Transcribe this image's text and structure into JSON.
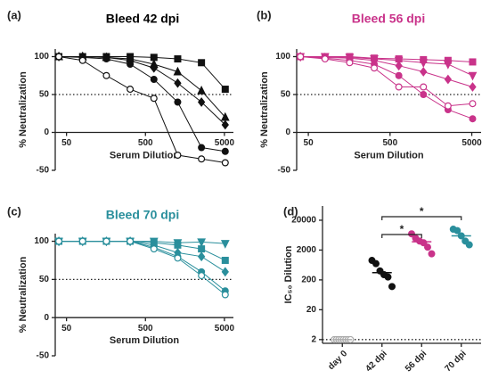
{
  "chart_data": [
    {
      "type": "line",
      "panel": "(a)",
      "title": "Bleed 42 dpi",
      "title_color": "#000000",
      "xlabel": "Serum Dilution",
      "ylabel": "% Neutralization",
      "x": [
        40,
        80,
        160,
        320,
        640,
        1280,
        2560,
        5120
      ],
      "xscale": "log",
      "xlim": [
        36,
        6500
      ],
      "xticks": [
        50,
        500,
        5000
      ],
      "ylim": [
        -50,
        110
      ],
      "yticks": [
        -50,
        0,
        50,
        100
      ],
      "reference_line": 50,
      "series": [
        {
          "marker": "square",
          "color": "#111111",
          "values": [
            100,
            100,
            100,
            100,
            99,
            97,
            92,
            57
          ]
        },
        {
          "marker": "triangle",
          "color": "#111111",
          "values": [
            100,
            100,
            99,
            97,
            90,
            80,
            55,
            20
          ]
        },
        {
          "marker": "diamond",
          "color": "#111111",
          "values": [
            100,
            100,
            99,
            95,
            85,
            65,
            40,
            10
          ]
        },
        {
          "marker": "circle",
          "color": "#111111",
          "values": [
            100,
            99,
            97,
            90,
            70,
            40,
            -20,
            -25
          ]
        },
        {
          "marker": "circle-open",
          "color": "#111111",
          "values": [
            100,
            95,
            75,
            57,
            45,
            -30,
            -35,
            -40
          ]
        }
      ]
    },
    {
      "type": "line",
      "panel": "(b)",
      "title": "Bleed 56 dpi",
      "title_color": "#c9338a",
      "xlabel": "Serum Dilution",
      "ylabel": "% Neutralization",
      "x": [
        40,
        80,
        160,
        320,
        640,
        1280,
        2560,
        5120
      ],
      "xscale": "log",
      "xlim": [
        36,
        6500
      ],
      "xticks": [
        50,
        500,
        5000
      ],
      "ylim": [
        -50,
        110
      ],
      "yticks": [
        -50,
        0,
        50,
        100
      ],
      "reference_line": 50,
      "series": [
        {
          "marker": "square",
          "color": "#c9338a",
          "values": [
            100,
            100,
            100,
            98,
            97,
            96,
            95,
            93
          ]
        },
        {
          "marker": "triangle-down",
          "color": "#c9338a",
          "values": [
            100,
            100,
            99,
            97,
            95,
            92,
            90,
            75
          ]
        },
        {
          "marker": "diamond",
          "color": "#c9338a",
          "values": [
            100,
            99,
            98,
            95,
            88,
            80,
            70,
            60
          ]
        },
        {
          "marker": "circle",
          "color": "#c9338a",
          "values": [
            100,
            98,
            95,
            90,
            75,
            50,
            30,
            18
          ]
        },
        {
          "marker": "circle-open",
          "color": "#c9338a",
          "values": [
            100,
            97,
            92,
            85,
            60,
            60,
            35,
            38
          ]
        }
      ]
    },
    {
      "type": "line",
      "panel": "(c)",
      "title": "Bleed 70 dpi",
      "title_color": "#2a8f9c",
      "xlabel": "Serum Dilution",
      "ylabel": "% Neutralization",
      "x": [
        40,
        80,
        160,
        320,
        640,
        1280,
        2560,
        5120
      ],
      "xscale": "log",
      "xlim": [
        36,
        6500
      ],
      "xticks": [
        50,
        500,
        5000
      ],
      "ylim": [
        -50,
        110
      ],
      "yticks": [
        -50,
        0,
        50,
        100
      ],
      "reference_line": 50,
      "series": [
        {
          "marker": "triangle-down",
          "color": "#2a8f9c",
          "values": [
            100,
            100,
            100,
            100,
            100,
            98,
            99,
            97
          ]
        },
        {
          "marker": "square",
          "color": "#2a8f9c",
          "values": [
            100,
            100,
            100,
            100,
            98,
            95,
            90,
            75
          ]
        },
        {
          "marker": "diamond",
          "color": "#2a8f9c",
          "values": [
            100,
            100,
            100,
            100,
            95,
            85,
            80,
            60
          ]
        },
        {
          "marker": "circle",
          "color": "#2a8f9c",
          "values": [
            100,
            100,
            100,
            100,
            92,
            80,
            60,
            35
          ]
        },
        {
          "marker": "circle-open",
          "color": "#2a8f9c",
          "values": [
            100,
            100,
            100,
            100,
            90,
            78,
            55,
            30
          ]
        }
      ]
    },
    {
      "type": "strip",
      "panel": "(d)",
      "ylabel": "IC₅₀ Dilution",
      "yscale": "log",
      "categories": [
        "day 0",
        "42 dpi",
        "56 dpi",
        "70 dpi"
      ],
      "colors": [
        "#aaaaaa",
        "#111111",
        "#c9338a",
        "#2a8f9c"
      ],
      "markers": [
        "circle-open",
        "circle",
        "circle",
        "circle"
      ],
      "values": [
        [
          2,
          2,
          2,
          2,
          2,
          2,
          2,
          2
        ],
        [
          900,
          700,
          400,
          300,
          250,
          120
        ],
        [
          7000,
          5000,
          4000,
          3500,
          2500,
          1500
        ],
        [
          10000,
          9000,
          6000,
          4000,
          3000
        ]
      ],
      "medians": [
        2,
        350,
        3800,
        6000
      ],
      "ylim": [
        1.5,
        60000
      ],
      "yticks": [
        2,
        20,
        200,
        2000,
        20000
      ],
      "reference_line": 2,
      "annotations": [
        {
          "text": "*",
          "between": [
            "42 dpi",
            "70 dpi"
          ]
        },
        {
          "text": "*",
          "between": [
            "42 dpi",
            "56 dpi"
          ]
        }
      ]
    }
  ]
}
